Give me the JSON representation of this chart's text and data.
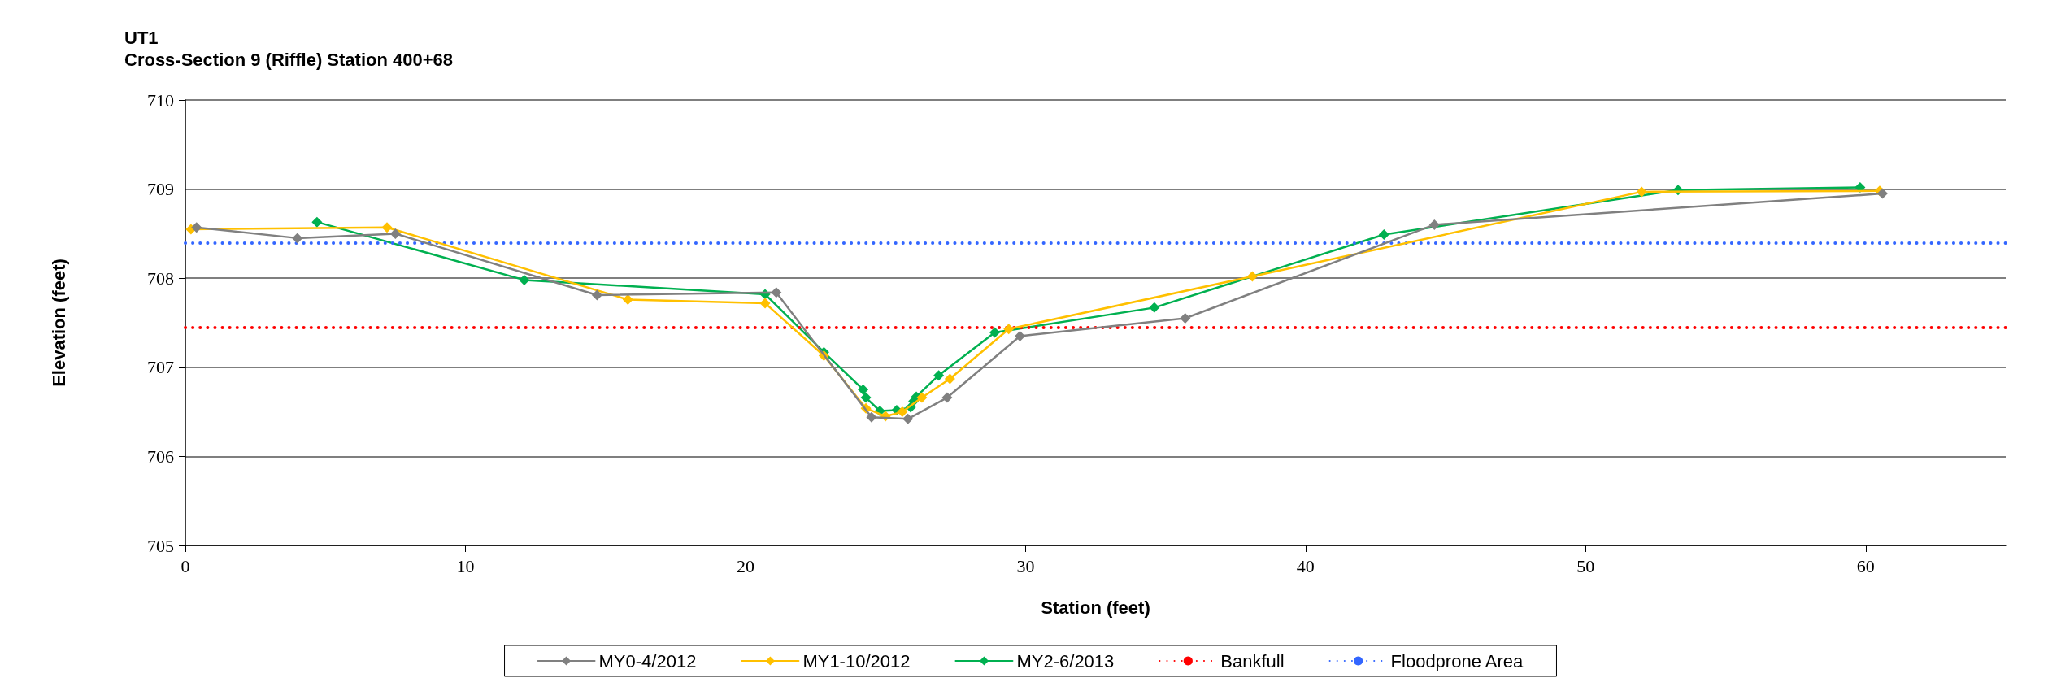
{
  "chart_data": {
    "type": "line",
    "title": "UT1",
    "subtitle": "Cross-Section 9 (Riffle) Station 400+68",
    "xlabel": "Station (feet)",
    "ylabel": "Elevation (feet)",
    "xlim": [
      0,
      65
    ],
    "xticks": [
      0,
      10,
      20,
      30,
      40,
      50,
      60
    ],
    "ylim": [
      705,
      710
    ],
    "yticks": [
      705,
      706,
      707,
      708,
      709,
      710
    ],
    "grid": "y",
    "legend": "bottom",
    "marker": "diamond",
    "line_style": "solid",
    "series": [
      {
        "name": "MY0-4/2012",
        "color": "#808080",
        "x": [
          0.4,
          4.0,
          7.5,
          14.7,
          21.1,
          24.5,
          25.8,
          27.2,
          29.8,
          35.7,
          44.6,
          60.6
        ],
        "values": [
          708.57,
          708.45,
          708.5,
          707.81,
          707.84,
          706.44,
          706.42,
          706.66,
          707.35,
          707.55,
          708.6,
          708.95
        ]
      },
      {
        "name": "MY1-10/2012",
        "color": "#ffc000",
        "x": [
          0.2,
          7.2,
          15.8,
          20.7,
          22.8,
          24.3,
          25.0,
          25.6,
          26.3,
          27.3,
          29.4,
          38.1,
          52.0,
          60.5
        ],
        "values": [
          708.55,
          708.57,
          707.76,
          707.72,
          707.13,
          706.54,
          706.45,
          706.5,
          706.66,
          706.87,
          707.43,
          708.02,
          708.97,
          708.98
        ]
      },
      {
        "name": "MY2-6/2013",
        "color": "#00b050",
        "x": [
          4.7,
          12.1,
          20.7,
          22.8,
          24.2,
          24.3,
          24.8,
          25.4,
          25.9,
          26.0,
          26.1,
          26.9,
          28.9,
          34.6,
          42.8,
          53.3,
          59.8
        ],
        "values": [
          708.63,
          707.98,
          707.82,
          707.17,
          706.75,
          706.66,
          706.51,
          706.52,
          706.55,
          706.62,
          706.67,
          706.91,
          707.39,
          707.67,
          708.49,
          708.99,
          709.02
        ]
      }
    ],
    "ref_lines": [
      {
        "axis": "y",
        "value": 707.45,
        "label": "Bankfull",
        "color": "#ff0000",
        "line_style": "dotted"
      },
      {
        "axis": "y",
        "value": 708.4,
        "label": "Floodprone Area",
        "color": "#3366ff",
        "line_style": "dotted"
      }
    ]
  }
}
